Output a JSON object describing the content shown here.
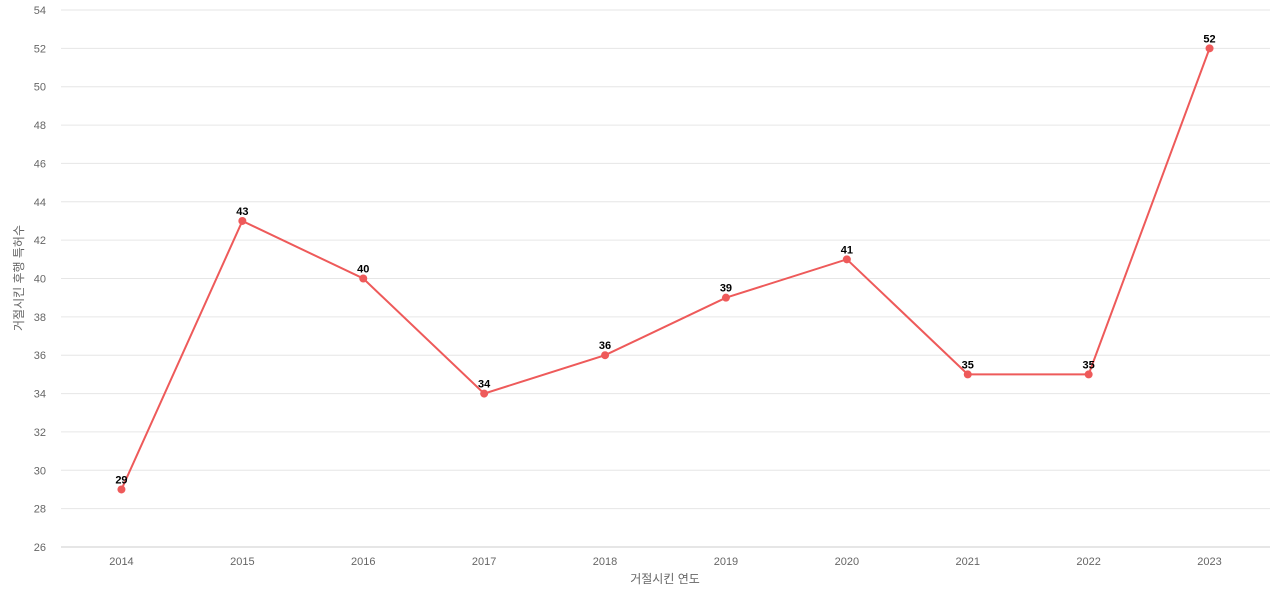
{
  "colors": {
    "series": "#ee5a5a",
    "grid": "#e6e6e6",
    "axis_text": "#666666",
    "label_text": "#000000"
  },
  "chart_data": {
    "type": "line",
    "title": "",
    "xlabel": "거절시킨 연도",
    "ylabel": "거절시킨 후행 특허수",
    "categories": [
      "2014",
      "2015",
      "2016",
      "2017",
      "2018",
      "2019",
      "2020",
      "2021",
      "2022",
      "2023"
    ],
    "series": [
      {
        "values": [
          29,
          43,
          40,
          34,
          36,
          39,
          41,
          35,
          35,
          52
        ]
      }
    ],
    "ylim": [
      26,
      54
    ],
    "yticks": [
      26,
      28,
      30,
      32,
      34,
      36,
      38,
      40,
      42,
      44,
      46,
      48,
      50,
      52,
      54
    ],
    "grid": true,
    "legend": "none",
    "data_labels": true
  }
}
